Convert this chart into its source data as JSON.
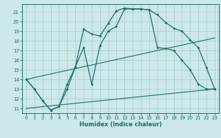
{
  "xlabel": "Humidex (Indice chaleur)",
  "bg_color": "#cce8e8",
  "grid_color": "#aacfcf",
  "line_color": "#1a6b6b",
  "xlim": [
    -0.5,
    23.5
  ],
  "ylim": [
    10.5,
    21.8
  ],
  "yticks": [
    11,
    12,
    13,
    14,
    15,
    16,
    17,
    18,
    19,
    20,
    21
  ],
  "xticks": [
    0,
    1,
    2,
    3,
    4,
    5,
    6,
    7,
    8,
    9,
    10,
    11,
    12,
    13,
    14,
    15,
    16,
    17,
    18,
    19,
    20,
    21,
    22,
    23
  ],
  "curve1_x": [
    0,
    1,
    2,
    3,
    4,
    5,
    6,
    7,
    8,
    9,
    10,
    11,
    12,
    13,
    14,
    15,
    16,
    17,
    18,
    19,
    20,
    21,
    22,
    23
  ],
  "curve1_y": [
    14.0,
    13.0,
    11.8,
    10.8,
    11.2,
    13.5,
    15.3,
    19.2,
    18.7,
    18.5,
    19.8,
    21.1,
    21.4,
    21.3,
    21.3,
    21.2,
    20.7,
    19.9,
    19.3,
    19.0,
    18.1,
    17.3,
    15.2,
    13.0
  ],
  "curve2_x": [
    0,
    1,
    2,
    3,
    4,
    5,
    6,
    7,
    8,
    9,
    10,
    11,
    12,
    13,
    14,
    15,
    16,
    17,
    18,
    19,
    20,
    21,
    22,
    23
  ],
  "curve2_y": [
    14.0,
    13.0,
    11.8,
    10.8,
    11.2,
    13.0,
    15.3,
    17.3,
    13.5,
    17.5,
    19.0,
    19.5,
    21.3,
    21.3,
    21.3,
    21.2,
    17.3,
    17.2,
    17.0,
    16.0,
    15.0,
    13.5,
    13.0,
    13.0
  ],
  "line1_x": [
    0,
    23
  ],
  "line1_y": [
    11.0,
    13.0
  ],
  "line2_x": [
    0,
    23
  ],
  "line2_y": [
    14.0,
    18.3
  ]
}
